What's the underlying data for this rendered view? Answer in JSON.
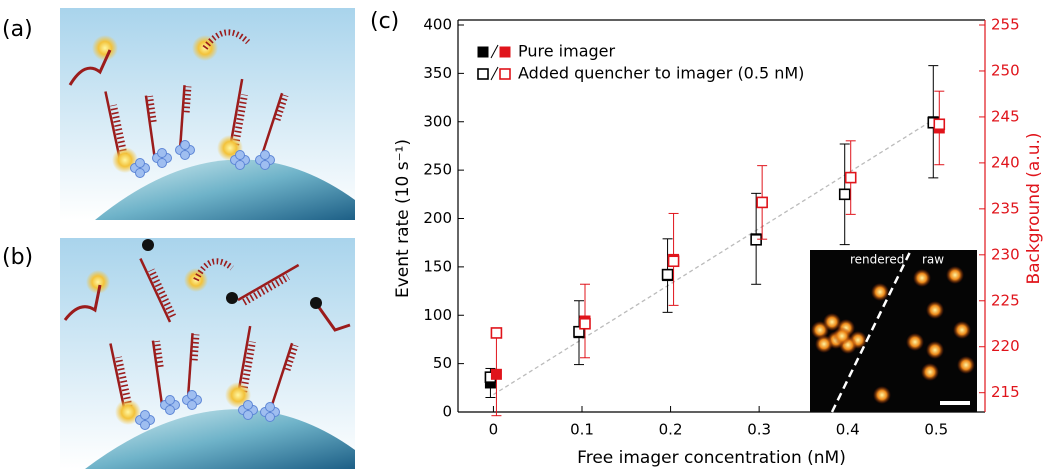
{
  "panel_labels": [
    "(a)",
    "(b)",
    "(c)"
  ],
  "chart_data": {
    "type": "scatter",
    "xlabel": "Free imager concentration (nM)",
    "ylabel": "Event rate (10 s⁻¹)",
    "y2label": "Background (a.u.)",
    "x": [
      0,
      0.1,
      0.2,
      0.3,
      0.4,
      0.5
    ],
    "xlim": [
      -0.04,
      0.555
    ],
    "xticks": [
      0,
      0.1,
      0.2,
      0.3,
      0.4,
      0.5
    ],
    "ylim": [
      0,
      400
    ],
    "yticks": [
      0,
      50,
      100,
      150,
      200,
      250,
      300,
      350,
      400
    ],
    "y2lim": [
      212.9,
      255
    ],
    "y2ticks": [
      215,
      220,
      225,
      230,
      235,
      240,
      245,
      250,
      255
    ],
    "y2color": "#e0141b",
    "series": [
      {
        "name": "Pure imager",
        "color": "#000000",
        "fill": "filled",
        "values": [
          30,
          82,
          141,
          179,
          225,
          300
        ],
        "errors": [
          15,
          33,
          38,
          47,
          52,
          58
        ]
      },
      {
        "name": "Added quencher to imager (0.5 nM)",
        "color": "#000000",
        "fill": "hollow",
        "values": [
          36,
          83,
          142,
          178,
          225,
          299
        ]
      },
      {
        "color": "#e0141b",
        "fill": "filled",
        "axis": "y2",
        "values": [
          217,
          222.8,
          229.5,
          235.7,
          238.4,
          243.8
        ],
        "errors": [
          4.5,
          4,
          5,
          4,
          4,
          4
        ]
      },
      {
        "color": "#e0141b",
        "fill": "hollow",
        "axis": "y2",
        "values": [
          221.5,
          222.5,
          229.3,
          235.7,
          238.4,
          244.2
        ]
      }
    ],
    "fit_line": {
      "x": [
        0,
        0.5
      ],
      "values": [
        18,
        304
      ]
    },
    "inset_labels": [
      "rendered",
      "raw"
    ]
  }
}
